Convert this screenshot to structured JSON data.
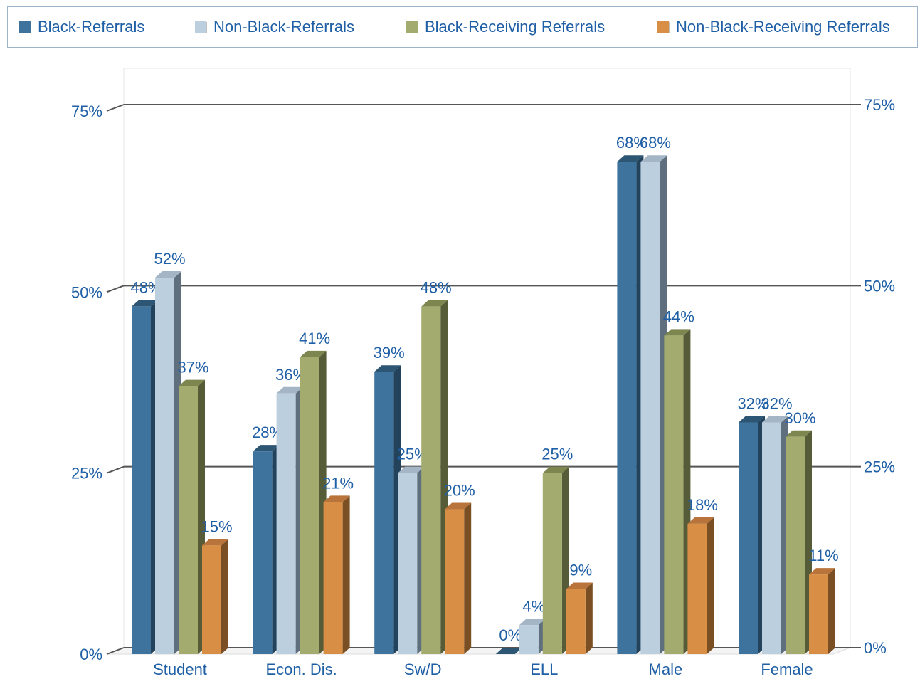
{
  "chart_data": {
    "type": "bar",
    "categories": [
      "Student",
      "Econ. Dis.",
      "Sw/D",
      "ELL",
      "Male",
      "Female"
    ],
    "series": [
      {
        "name": "Black-Referrals",
        "values": [
          48,
          28,
          39,
          0,
          68,
          32
        ],
        "labels": [
          "48%",
          "28%",
          "39%",
          "0%",
          "68%",
          "32%"
        ]
      },
      {
        "name": "Non-Black-Referrals",
        "values": [
          52,
          36,
          25,
          4,
          68,
          32
        ],
        "labels": [
          "52%",
          "36%",
          "25%",
          "4%",
          "68%",
          "32%"
        ]
      },
      {
        "name": "Black-Receiving Referrals",
        "values": [
          37,
          41,
          48,
          25,
          44,
          30
        ],
        "labels": [
          "37%",
          "41%",
          "48%",
          "25%",
          "44%",
          "30%"
        ]
      },
      {
        "name": "Non-Black-Receiving Referrals",
        "values": [
          15,
          21,
          20,
          9,
          18,
          11
        ],
        "labels": [
          "15%",
          "21%",
          "20%",
          "9%",
          "18%",
          "11%"
        ]
      }
    ],
    "ylim": [
      0,
      75
    ],
    "yticks": [
      "0%",
      "25%",
      "50%",
      "75%"
    ],
    "ytick_values": [
      0,
      25,
      50,
      75
    ],
    "legend_position": "top",
    "grid": true,
    "colors": {
      "series": [
        "#3d739c",
        "#bccfde",
        "#a3ac6e",
        "#d88f45"
      ],
      "series_dark": [
        "#22435b",
        "#5f6f7e",
        "#565c37",
        "#7a4f23"
      ],
      "series_top": [
        "#2d5675",
        "#a4b6c6",
        "#7e8650",
        "#b8743a"
      ],
      "text": "#1f5fa6",
      "grid": "#555555"
    }
  }
}
